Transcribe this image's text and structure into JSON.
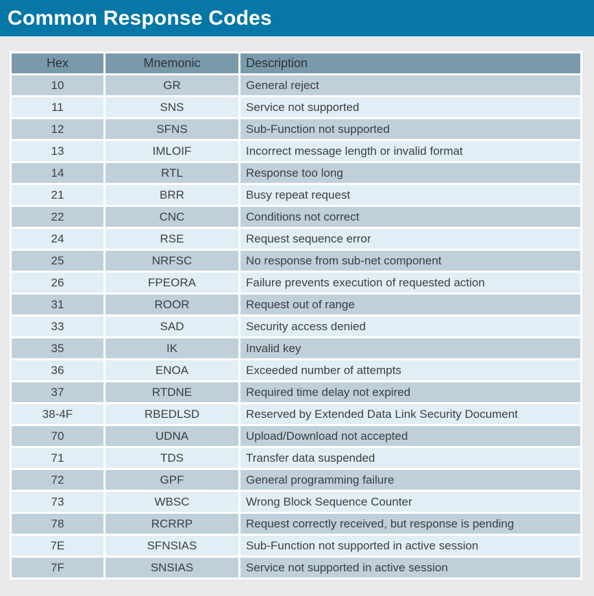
{
  "page": {
    "title": "Common Response Codes",
    "colors": {
      "title_bar_bg": "#0677A7",
      "title_text": "#FFFFFF",
      "page_bg": "#EAE9E9",
      "table_frame": "#FFFFFF",
      "header_row_bg": "#7A9AAC",
      "row_dark_bg": "#BFD0DA",
      "row_light_bg": "#E2EEF5",
      "cell_text": "#3B3E40"
    }
  },
  "table": {
    "columns": [
      "Hex",
      "Mnemonic",
      "Description"
    ],
    "rows": [
      [
        "10",
        "GR",
        "General reject"
      ],
      [
        "11",
        "SNS",
        "Service not supported"
      ],
      [
        "12",
        "SFNS",
        "Sub-Function not supported"
      ],
      [
        "13",
        "IMLOIF",
        "Incorrect message length or invalid format"
      ],
      [
        "14",
        "RTL",
        "Response too long"
      ],
      [
        "21",
        "BRR",
        "Busy repeat request"
      ],
      [
        "22",
        "CNC",
        "Conditions not correct"
      ],
      [
        "24",
        "RSE",
        "Request sequence error"
      ],
      [
        "25",
        "NRFSC",
        "No response from sub-net component"
      ],
      [
        "26",
        "FPEORA",
        "Failure prevents execution of requested action"
      ],
      [
        "31",
        "ROOR",
        "Request out of range"
      ],
      [
        "33",
        "SAD",
        "Security access denied"
      ],
      [
        "35",
        "IK",
        "Invalid key"
      ],
      [
        "36",
        "ENOA",
        "Exceeded number of attempts"
      ],
      [
        "37",
        "RTDNE",
        "Required time delay not expired"
      ],
      [
        "38-4F",
        "RBEDLSD",
        "Reserved by Extended Data Link Security Document"
      ],
      [
        "70",
        "UDNA",
        "Upload/Download not accepted"
      ],
      [
        "71",
        "TDS",
        "Transfer data suspended"
      ],
      [
        "72",
        "GPF",
        "General programming failure"
      ],
      [
        "73",
        "WBSC",
        "Wrong Block Sequence Counter"
      ],
      [
        "78",
        "RCRRP",
        "Request correctly received, but response is pending"
      ],
      [
        "7E",
        "SFNSIAS",
        "Sub-Function not supported in active session"
      ],
      [
        "7F",
        "SNSIAS",
        "Service not supported in active session"
      ]
    ]
  }
}
